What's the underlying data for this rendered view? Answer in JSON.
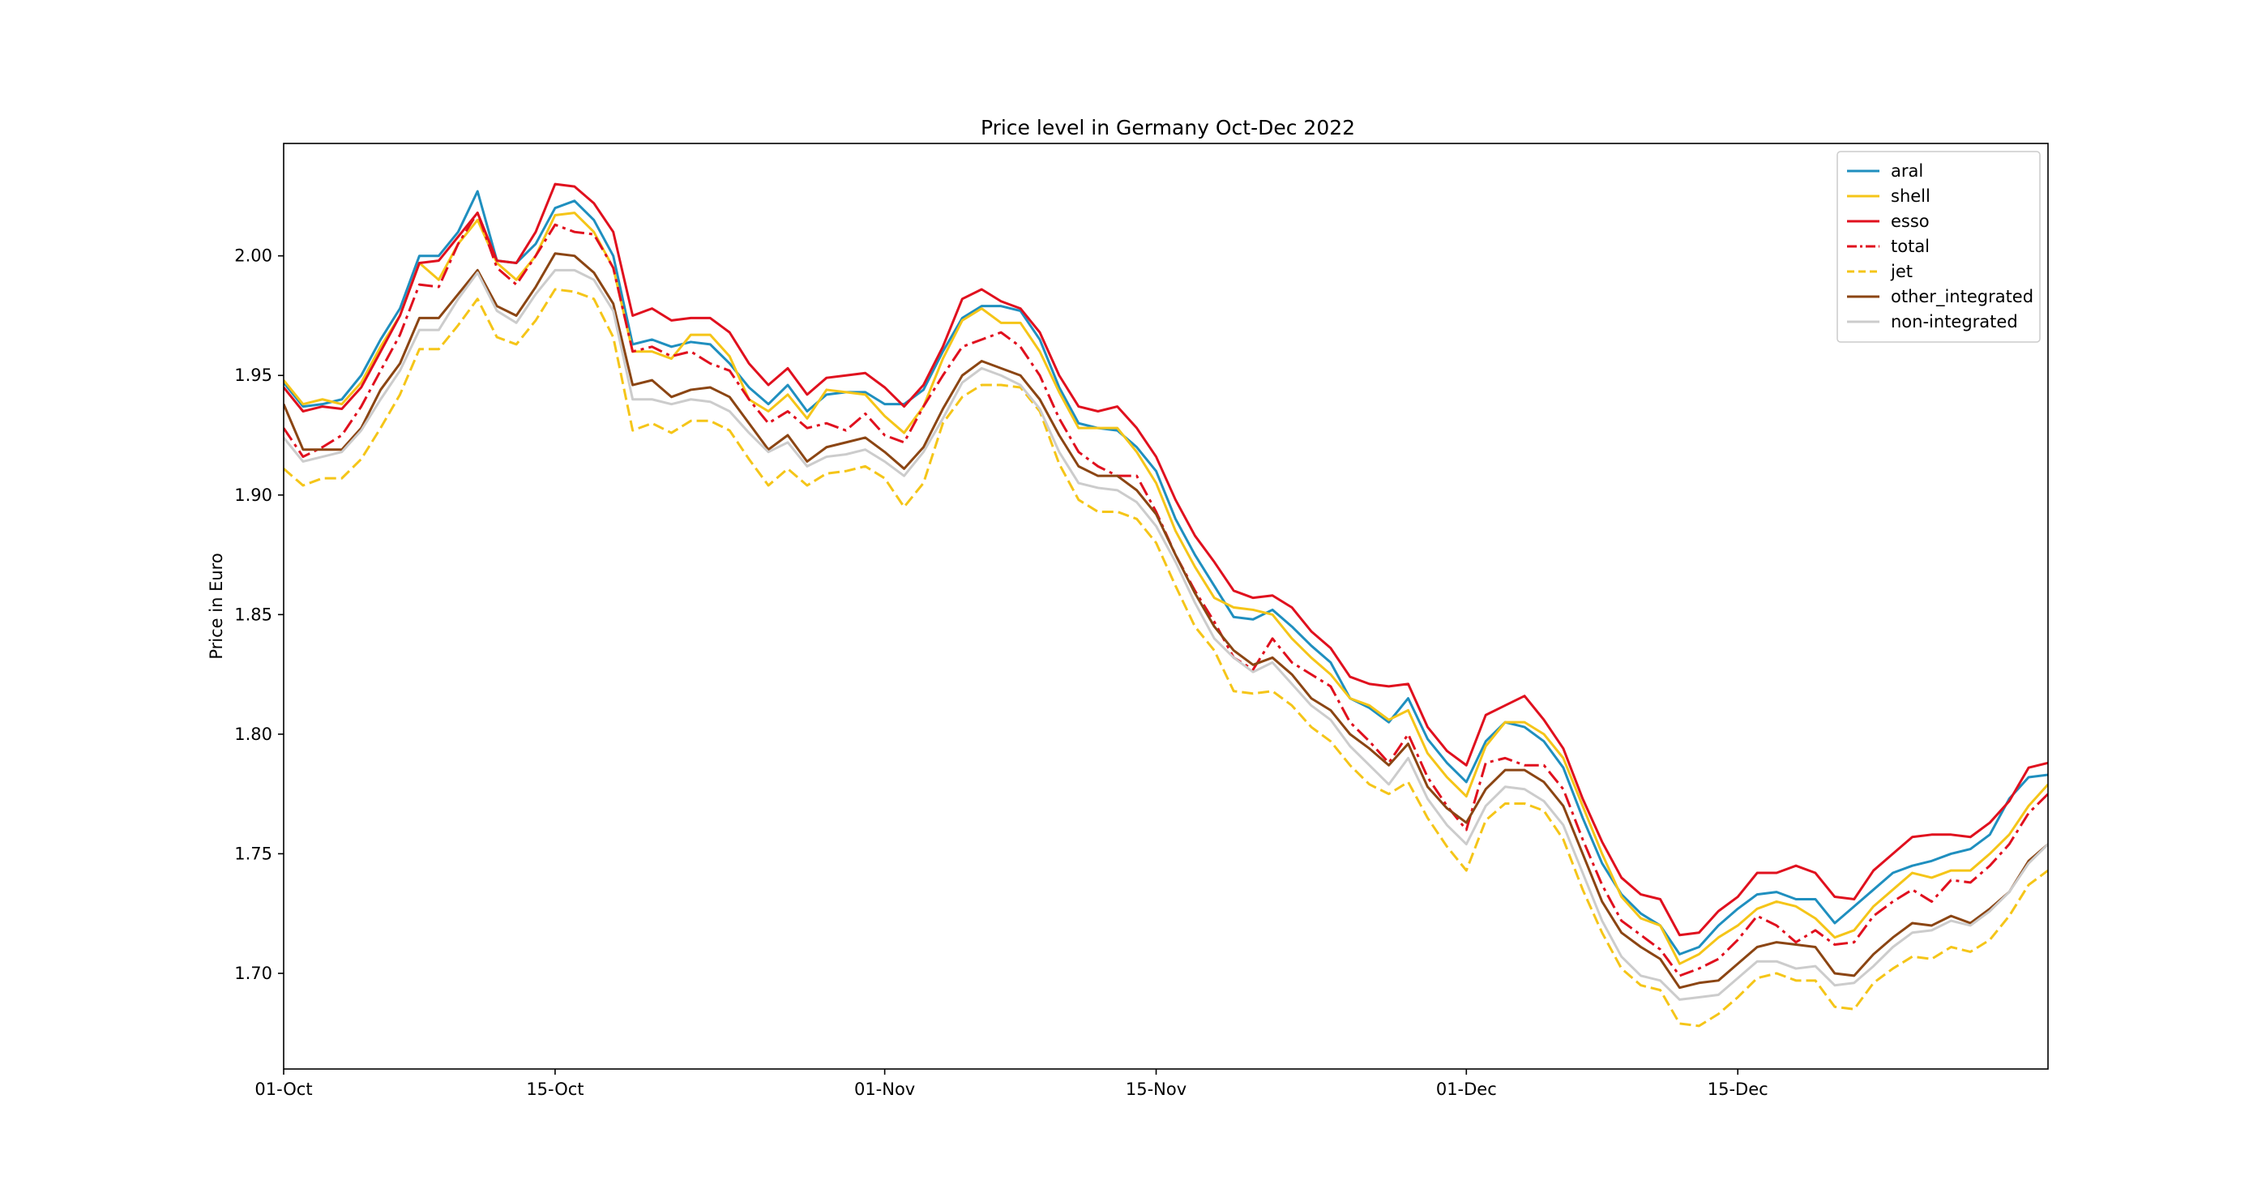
{
  "chart_data": {
    "type": "line",
    "title": "Price level in Germany Oct-Dec 2022",
    "xlabel": "",
    "ylabel": "Price in Euro",
    "x_ticks": [
      {
        "label": "01-Oct",
        "index": 0
      },
      {
        "label": "15-Oct",
        "index": 14
      },
      {
        "label": "01-Nov",
        "index": 31
      },
      {
        "label": "15-Nov",
        "index": 45
      },
      {
        "label": "01-Dec",
        "index": 61
      },
      {
        "label": "15-Dec",
        "index": 75
      }
    ],
    "y_ticks": [
      1.7,
      1.75,
      1.8,
      1.85,
      1.9,
      1.95,
      2.0
    ],
    "xlim": [
      0,
      91
    ],
    "ylim": [
      1.66,
      2.047
    ],
    "grid": false,
    "legend": "top-right",
    "series": [
      {
        "name": "aral",
        "color": "#1f8fbf",
        "dash": "solid",
        "values": [
          1.947,
          1.937,
          1.938,
          1.94,
          1.95,
          1.965,
          1.978,
          2.0,
          2.0,
          2.01,
          2.027,
          1.998,
          1.997,
          2.005,
          2.02,
          2.023,
          2.015,
          2.0,
          1.963,
          1.965,
          1.962,
          1.964,
          1.963,
          1.955,
          1.945,
          1.938,
          1.946,
          1.935,
          1.942,
          1.943,
          1.943,
          1.938,
          1.938,
          1.944,
          1.96,
          1.974,
          1.979,
          1.979,
          1.977,
          1.965,
          1.945,
          1.93,
          1.928,
          1.927,
          1.92,
          1.91,
          1.89,
          1.875,
          1.862,
          1.849,
          1.848,
          1.852,
          1.845,
          1.837,
          1.83,
          1.815,
          1.811,
          1.805,
          1.815,
          1.798,
          1.788,
          1.78,
          1.797,
          1.805,
          1.803,
          1.797,
          1.786,
          1.765,
          1.746,
          1.733,
          1.725,
          1.72,
          1.708,
          1.711,
          1.72,
          1.727,
          1.733,
          1.734,
          1.731,
          1.731,
          1.721,
          1.728,
          1.735,
          1.742,
          1.745,
          1.747,
          1.75,
          1.752,
          1.758,
          1.773,
          1.782,
          1.783
        ]
      },
      {
        "name": "shell",
        "color": "#f5c518",
        "dash": "solid",
        "values": [
          1.948,
          1.938,
          1.94,
          1.938,
          1.947,
          1.962,
          1.975,
          1.997,
          1.99,
          2.005,
          2.015,
          1.997,
          1.99,
          2.0,
          2.017,
          2.018,
          2.01,
          1.995,
          1.96,
          1.96,
          1.957,
          1.967,
          1.967,
          1.958,
          1.94,
          1.935,
          1.942,
          1.932,
          1.944,
          1.943,
          1.942,
          1.933,
          1.926,
          1.937,
          1.957,
          1.973,
          1.978,
          1.972,
          1.972,
          1.96,
          1.943,
          1.928,
          1.928,
          1.928,
          1.918,
          1.905,
          1.885,
          1.87,
          1.857,
          1.853,
          1.852,
          1.85,
          1.84,
          1.832,
          1.825,
          1.815,
          1.812,
          1.806,
          1.81,
          1.792,
          1.782,
          1.774,
          1.795,
          1.805,
          1.805,
          1.8,
          1.79,
          1.77,
          1.75,
          1.732,
          1.723,
          1.72,
          1.704,
          1.708,
          1.715,
          1.72,
          1.727,
          1.73,
          1.728,
          1.723,
          1.715,
          1.718,
          1.728,
          1.735,
          1.742,
          1.74,
          1.743,
          1.743,
          1.75,
          1.758,
          1.77,
          1.779
        ]
      },
      {
        "name": "esso",
        "color": "#e0101e",
        "dash": "solid",
        "values": [
          1.945,
          1.935,
          1.937,
          1.936,
          1.945,
          1.96,
          1.975,
          1.997,
          1.998,
          2.008,
          2.018,
          1.998,
          1.997,
          2.01,
          2.03,
          2.029,
          2.022,
          2.01,
          1.975,
          1.978,
          1.973,
          1.974,
          1.974,
          1.968,
          1.955,
          1.946,
          1.953,
          1.942,
          1.949,
          1.95,
          1.951,
          1.945,
          1.937,
          1.946,
          1.962,
          1.982,
          1.986,
          1.981,
          1.978,
          1.968,
          1.95,
          1.937,
          1.935,
          1.937,
          1.928,
          1.916,
          1.898,
          1.883,
          1.872,
          1.86,
          1.857,
          1.858,
          1.853,
          1.843,
          1.836,
          1.824,
          1.821,
          1.82,
          1.821,
          1.803,
          1.793,
          1.787,
          1.808,
          1.812,
          1.816,
          1.806,
          1.794,
          1.773,
          1.755,
          1.74,
          1.733,
          1.731,
          1.716,
          1.717,
          1.726,
          1.732,
          1.742,
          1.742,
          1.745,
          1.742,
          1.732,
          1.731,
          1.743,
          1.75,
          1.757,
          1.758,
          1.758,
          1.757,
          1.763,
          1.772,
          1.786,
          1.788
        ]
      },
      {
        "name": "total",
        "color": "#e0101e",
        "dash": "dashdot",
        "values": [
          1.928,
          1.916,
          1.92,
          1.925,
          1.937,
          1.952,
          1.967,
          1.988,
          1.987,
          2.005,
          2.018,
          1.995,
          1.988,
          2.0,
          2.013,
          2.01,
          2.009,
          1.995,
          1.96,
          1.962,
          1.958,
          1.96,
          1.955,
          1.952,
          1.94,
          1.93,
          1.935,
          1.928,
          1.93,
          1.927,
          1.934,
          1.925,
          1.922,
          1.937,
          1.95,
          1.962,
          1.965,
          1.968,
          1.962,
          1.95,
          1.932,
          1.918,
          1.912,
          1.908,
          1.908,
          1.893,
          1.875,
          1.86,
          1.847,
          1.832,
          1.827,
          1.84,
          1.83,
          1.825,
          1.82,
          1.805,
          1.797,
          1.788,
          1.8,
          1.782,
          1.77,
          1.76,
          1.788,
          1.79,
          1.787,
          1.787,
          1.777,
          1.756,
          1.737,
          1.722,
          1.716,
          1.71,
          1.699,
          1.702,
          1.706,
          1.714,
          1.724,
          1.72,
          1.713,
          1.718,
          1.712,
          1.713,
          1.724,
          1.73,
          1.735,
          1.73,
          1.739,
          1.738,
          1.745,
          1.754,
          1.767,
          1.775
        ]
      },
      {
        "name": "jet",
        "color": "#f5c518",
        "dash": "dashed",
        "values": [
          1.911,
          1.904,
          1.907,
          1.907,
          1.915,
          1.928,
          1.942,
          1.961,
          1.961,
          1.971,
          1.982,
          1.966,
          1.963,
          1.973,
          1.986,
          1.985,
          1.982,
          1.966,
          1.927,
          1.93,
          1.926,
          1.931,
          1.931,
          1.927,
          1.915,
          1.904,
          1.911,
          1.904,
          1.909,
          1.91,
          1.912,
          1.907,
          1.895,
          1.905,
          1.93,
          1.941,
          1.946,
          1.946,
          1.945,
          1.935,
          1.913,
          1.898,
          1.893,
          1.893,
          1.89,
          1.88,
          1.862,
          1.845,
          1.835,
          1.818,
          1.817,
          1.818,
          1.812,
          1.803,
          1.797,
          1.787,
          1.779,
          1.775,
          1.78,
          1.765,
          1.753,
          1.743,
          1.764,
          1.771,
          1.771,
          1.768,
          1.756,
          1.735,
          1.717,
          1.702,
          1.695,
          1.693,
          1.679,
          1.678,
          1.683,
          1.69,
          1.698,
          1.7,
          1.697,
          1.697,
          1.686,
          1.685,
          1.696,
          1.702,
          1.707,
          1.706,
          1.711,
          1.709,
          1.714,
          1.724,
          1.737,
          1.743
        ]
      },
      {
        "name": "other_integrated",
        "color": "#8b4513",
        "dash": "solid",
        "values": [
          1.938,
          1.919,
          1.919,
          1.919,
          1.928,
          1.944,
          1.955,
          1.974,
          1.974,
          1.984,
          1.994,
          1.979,
          1.975,
          1.987,
          2.001,
          2.0,
          1.993,
          1.98,
          1.946,
          1.948,
          1.941,
          1.944,
          1.945,
          1.941,
          1.93,
          1.919,
          1.925,
          1.914,
          1.92,
          1.922,
          1.924,
          1.918,
          1.911,
          1.92,
          1.936,
          1.95,
          1.956,
          1.953,
          1.95,
          1.94,
          1.925,
          1.912,
          1.908,
          1.908,
          1.902,
          1.892,
          1.875,
          1.859,
          1.845,
          1.835,
          1.829,
          1.832,
          1.825,
          1.815,
          1.81,
          1.8,
          1.794,
          1.787,
          1.796,
          1.778,
          1.769,
          1.763,
          1.777,
          1.785,
          1.785,
          1.78,
          1.77,
          1.75,
          1.73,
          1.717,
          1.711,
          1.706,
          1.694,
          1.696,
          1.697,
          1.704,
          1.711,
          1.713,
          1.712,
          1.711,
          1.7,
          1.699,
          1.708,
          1.715,
          1.721,
          1.72,
          1.724,
          1.721,
          1.727,
          1.734,
          1.747,
          1.754
        ]
      },
      {
        "name": "non-integrated",
        "color": "#cccccc",
        "dash": "solid",
        "values": [
          1.924,
          1.914,
          1.916,
          1.918,
          1.927,
          1.94,
          1.952,
          1.969,
          1.969,
          1.982,
          1.993,
          1.977,
          1.972,
          1.984,
          1.994,
          1.994,
          1.99,
          1.977,
          1.94,
          1.94,
          1.938,
          1.94,
          1.939,
          1.935,
          1.926,
          1.918,
          1.922,
          1.912,
          1.916,
          1.917,
          1.919,
          1.914,
          1.908,
          1.918,
          1.932,
          1.947,
          1.953,
          1.95,
          1.946,
          1.936,
          1.918,
          1.905,
          1.903,
          1.902,
          1.897,
          1.887,
          1.872,
          1.855,
          1.84,
          1.832,
          1.826,
          1.83,
          1.821,
          1.812,
          1.806,
          1.795,
          1.787,
          1.779,
          1.79,
          1.773,
          1.762,
          1.754,
          1.77,
          1.778,
          1.777,
          1.772,
          1.762,
          1.742,
          1.722,
          1.707,
          1.699,
          1.697,
          1.689,
          1.69,
          1.691,
          1.698,
          1.705,
          1.705,
          1.702,
          1.703,
          1.695,
          1.696,
          1.703,
          1.711,
          1.717,
          1.718,
          1.722,
          1.72,
          1.726,
          1.734,
          1.746,
          1.754
        ]
      }
    ]
  }
}
